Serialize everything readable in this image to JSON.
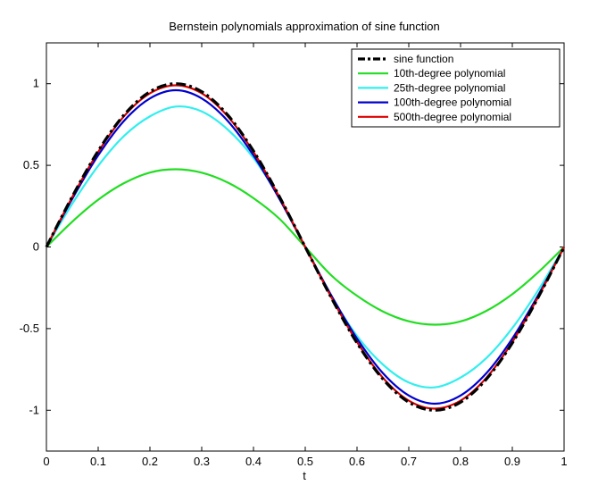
{
  "chart_data": {
    "type": "line",
    "title": "Bernstein polynomials approximation of sine function",
    "xlabel": "t",
    "ylabel": "",
    "xlim": [
      0,
      1
    ],
    "ylim": [
      -1.25,
      1.25
    ],
    "xticks": [
      0,
      0.1,
      0.2,
      0.3,
      0.4,
      0.5,
      0.6,
      0.7,
      0.8,
      0.9,
      1
    ],
    "xtick_labels": [
      "0",
      "0.1",
      "0.2",
      "0.3",
      "0.4",
      "0.5",
      "0.6",
      "0.7",
      "0.8",
      "0.9",
      "1"
    ],
    "yticks": [
      1,
      0.5,
      0,
      -0.5,
      -1
    ],
    "ytick_labels": [
      "1",
      "0.5",
      "0",
      "-0.5",
      "-1"
    ],
    "grid": false,
    "legend_position": "top-right",
    "x": [
      0,
      0.05,
      0.1,
      0.15,
      0.2,
      0.25,
      0.3,
      0.35,
      0.4,
      0.45,
      0.5,
      0.55,
      0.6,
      0.65,
      0.7,
      0.75,
      0.8,
      0.85,
      0.9,
      0.95,
      1
    ],
    "series": [
      {
        "name": "10th-degree polynomial",
        "color": "#22dd22",
        "style": "solid",
        "values": [
          0,
          0.155,
          0.289,
          0.391,
          0.456,
          0.476,
          0.455,
          0.395,
          0.299,
          0.173,
          0,
          -0.173,
          -0.299,
          -0.395,
          -0.455,
          -0.476,
          -0.456,
          -0.391,
          -0.289,
          -0.155,
          0
        ]
      },
      {
        "name": "25th-degree polynomial",
        "color": "#33eeee",
        "style": "solid",
        "values": [
          0,
          0.265,
          0.497,
          0.68,
          0.8,
          0.86,
          0.83,
          0.72,
          0.545,
          0.3,
          0,
          -0.3,
          -0.545,
          -0.72,
          -0.83,
          -0.86,
          -0.8,
          -0.68,
          -0.497,
          -0.265,
          0
        ]
      },
      {
        "name": "100th-degree polynomial",
        "color": "#0000cc",
        "style": "solid",
        "values": [
          0,
          0.295,
          0.561,
          0.773,
          0.91,
          0.96,
          0.91,
          0.773,
          0.561,
          0.295,
          0,
          -0.295,
          -0.561,
          -0.773,
          -0.91,
          -0.96,
          -0.91,
          -0.773,
          -0.561,
          -0.295,
          0
        ]
      },
      {
        "name": "500th-degree polynomial",
        "color": "#dd0000",
        "style": "solid",
        "values": [
          0,
          0.306,
          0.582,
          0.801,
          0.941,
          0.99,
          0.941,
          0.801,
          0.582,
          0.306,
          0,
          -0.306,
          -0.582,
          -0.801,
          -0.941,
          -0.99,
          -0.941,
          -0.801,
          -0.582,
          -0.306,
          0
        ]
      },
      {
        "name": "sine function",
        "color": "#000000",
        "style": "dash-dot",
        "values": [
          0,
          0.309,
          0.588,
          0.809,
          0.951,
          1,
          0.951,
          0.809,
          0.588,
          0.309,
          0,
          -0.309,
          -0.588,
          -0.809,
          -0.951,
          -1,
          -0.951,
          -0.809,
          -0.588,
          -0.309,
          0
        ]
      }
    ],
    "legend_order": [
      "sine function",
      "10th-degree polynomial",
      "25th-degree polynomial",
      "100th-degree polynomial",
      "500th-degree polynomial"
    ]
  }
}
